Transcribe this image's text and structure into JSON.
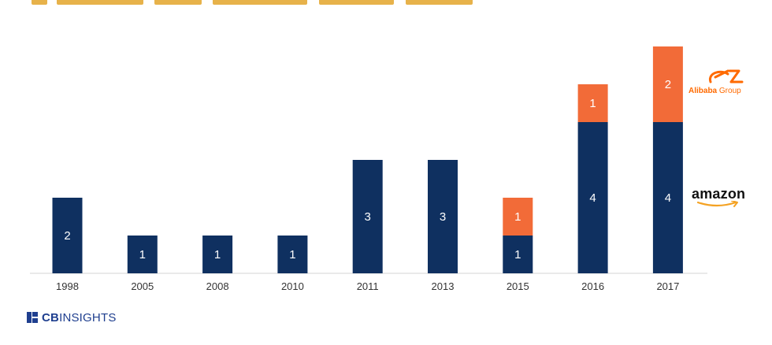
{
  "chart_data": {
    "type": "bar",
    "stacked": true,
    "categories": [
      "1998",
      "2005",
      "2008",
      "2010",
      "2011",
      "2013",
      "2015",
      "2016",
      "2017"
    ],
    "series": [
      {
        "values": [
          2,
          1,
          1,
          1,
          3,
          3,
          1,
          4,
          4
        ],
        "color": "#0f3060"
      },
      {
        "values": [
          0,
          0,
          0,
          0,
          0,
          0,
          1,
          1,
          2
        ],
        "color": "#f26b38"
      }
    ],
    "ylim": [
      0,
      6
    ],
    "grid": false
  },
  "legend": {
    "amazon": {
      "text": "amazon",
      "color": "#0f3060"
    },
    "alibaba": {
      "text_bold": "Alibaba",
      "text_rest": " Group",
      "color": "#f26b38"
    }
  },
  "footer": {
    "logo_bold": "CB",
    "logo_rest": "INSIGHTS",
    "icon": "cb-insights-logo-mark"
  }
}
